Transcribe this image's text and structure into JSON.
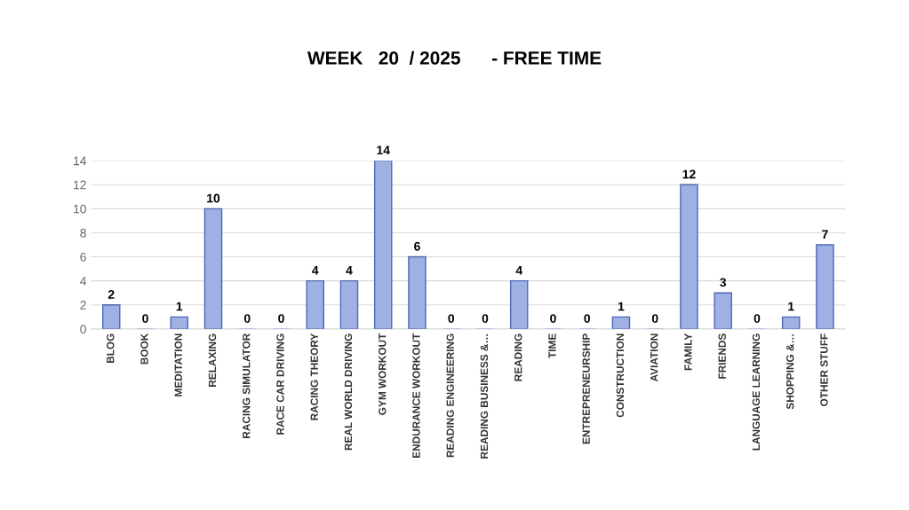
{
  "chart_data": {
    "type": "bar",
    "title": "WEEK   20  / 2025      - FREE TIME",
    "categories": [
      "BLOG",
      "BOOK",
      "MEDITATION",
      "RELAXING",
      "RACING SIMULATOR",
      "RACE CAR DRIVING",
      "RACING THEORY",
      "REAL WORLD DRIVING",
      "GYM WORKOUT",
      "ENDURANCE WORKOUT",
      "READING ENGINEERING",
      "READING BUSINESS &…",
      "READING",
      "TIME",
      "ENTREPRENEURSHIP",
      "CONSTRUCTION",
      "AVIATION",
      "FAMILY",
      "FRIENDS",
      "LANGUAGE LEARNING",
      "SHOPPING &…",
      "OTHER STUFF"
    ],
    "values": [
      2,
      0,
      1,
      10,
      0,
      0,
      4,
      4,
      14,
      6,
      0,
      0,
      4,
      0,
      0,
      1,
      0,
      12,
      3,
      0,
      1,
      7
    ],
    "color": "#9fb0e3",
    "ylim": [
      0,
      14
    ],
    "yticks": [
      0,
      2,
      4,
      6,
      8,
      10,
      12,
      14
    ],
    "grid": "y",
    "data_labels": true
  }
}
